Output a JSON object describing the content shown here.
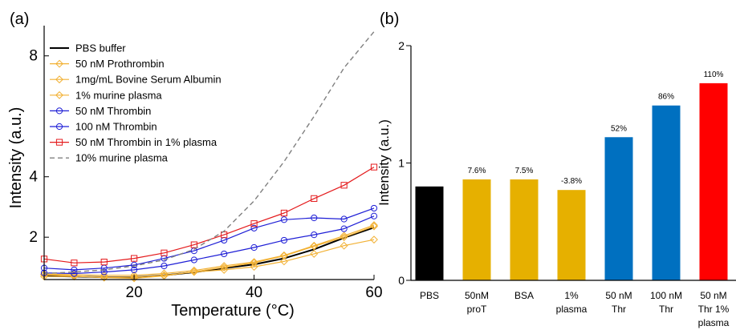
{
  "chart_data": [
    {
      "panel_label": "(a)",
      "type": "line",
      "xlabel": "Temperature (°C)",
      "ylabel": "Intensity (a.u.)",
      "xlim": [
        5,
        60
      ],
      "ylim": [
        0.6,
        9
      ],
      "xticks": [
        20,
        40,
        60
      ],
      "yticks": [
        2,
        4,
        8
      ],
      "x": [
        5,
        10,
        15,
        20,
        25,
        30,
        35,
        40,
        45,
        50,
        55,
        60
      ],
      "series": [
        {
          "name": "PBS buffer",
          "color": "#000000",
          "marker": "none",
          "dash": "solid",
          "width": 2,
          "values": [
            0.72,
            0.7,
            0.68,
            0.68,
            0.74,
            0.84,
            0.98,
            1.1,
            1.3,
            1.6,
            1.98,
            2.32
          ]
        },
        {
          "name": "50 nM Prothrombin",
          "color": "#f2b134",
          "marker": "diamond",
          "dash": "solid",
          "width": 1.2,
          "values": [
            0.7,
            0.7,
            0.68,
            0.68,
            0.74,
            0.85,
            0.92,
            1.02,
            1.2,
            1.45,
            1.72,
            1.92
          ]
        },
        {
          "name": "1mg/mL Bovine Serum Albumin",
          "color": "#f2b134",
          "marker": "diamond",
          "dash": "solid",
          "width": 1.2,
          "values": [
            0.76,
            0.72,
            0.66,
            0.64,
            0.72,
            0.86,
            1.0,
            1.15,
            1.38,
            1.7,
            2.0,
            2.36
          ]
        },
        {
          "name": "1% murine plasma",
          "color": "#f2b134",
          "marker": "diamond",
          "dash": "solid",
          "width": 1.2,
          "values": [
            0.78,
            0.76,
            0.74,
            0.74,
            0.8,
            0.9,
            1.05,
            1.18,
            1.4,
            1.72,
            2.05,
            2.4
          ]
        },
        {
          "name": "50 nM Thrombin",
          "color": "#1f1fd6",
          "marker": "circle",
          "dash": "solid",
          "width": 1.2,
          "values": [
            0.82,
            0.8,
            0.85,
            0.92,
            1.05,
            1.25,
            1.45,
            1.66,
            1.9,
            2.08,
            2.28,
            2.7
          ]
        },
        {
          "name": "100 nM Thrombin",
          "color": "#1f1fd6",
          "marker": "circle",
          "dash": "solid",
          "width": 1.2,
          "values": [
            0.98,
            0.92,
            0.98,
            1.08,
            1.3,
            1.55,
            1.9,
            2.3,
            2.58,
            2.64,
            2.6,
            2.96
          ]
        },
        {
          "name": "50 nM Thrombin in 1% plasma",
          "color": "#e41a1c",
          "marker": "square",
          "dash": "solid",
          "width": 1.2,
          "values": [
            1.28,
            1.15,
            1.18,
            1.3,
            1.48,
            1.75,
            2.08,
            2.45,
            2.8,
            3.28,
            3.72,
            4.32
          ]
        },
        {
          "name": "10% murine plasma",
          "color": "#808080",
          "marker": "none",
          "dash": "dashed",
          "width": 1.4,
          "values": [
            0.8,
            0.85,
            0.92,
            1.05,
            1.25,
            1.6,
            2.2,
            3.2,
            4.5,
            6.0,
            7.6,
            8.8
          ]
        }
      ]
    },
    {
      "panel_label": "(b)",
      "type": "bar",
      "ylabel": "Intensity (a.u.)",
      "ylim": [
        0,
        2
      ],
      "yticks": [
        "0",
        "1",
        "2"
      ],
      "categories": [
        [
          "PBS"
        ],
        [
          "50nM",
          "proT"
        ],
        [
          "BSA"
        ],
        [
          "1%",
          "plasma"
        ],
        [
          "50 nM",
          "Thr"
        ],
        [
          "100 nM",
          "Thr"
        ],
        [
          "50 nM",
          "Thr 1%",
          "plasma"
        ]
      ],
      "values": [
        0.8,
        0.86,
        0.86,
        0.77,
        1.22,
        1.49,
        1.68
      ],
      "labels": [
        "",
        "7.6%",
        "7.5%",
        "-3.8%",
        "52%",
        "86%",
        "110%"
      ],
      "colors": [
        "#000000",
        "#e6b000",
        "#e6b000",
        "#e6b000",
        "#0070c0",
        "#0070c0",
        "#ff0000"
      ]
    }
  ]
}
